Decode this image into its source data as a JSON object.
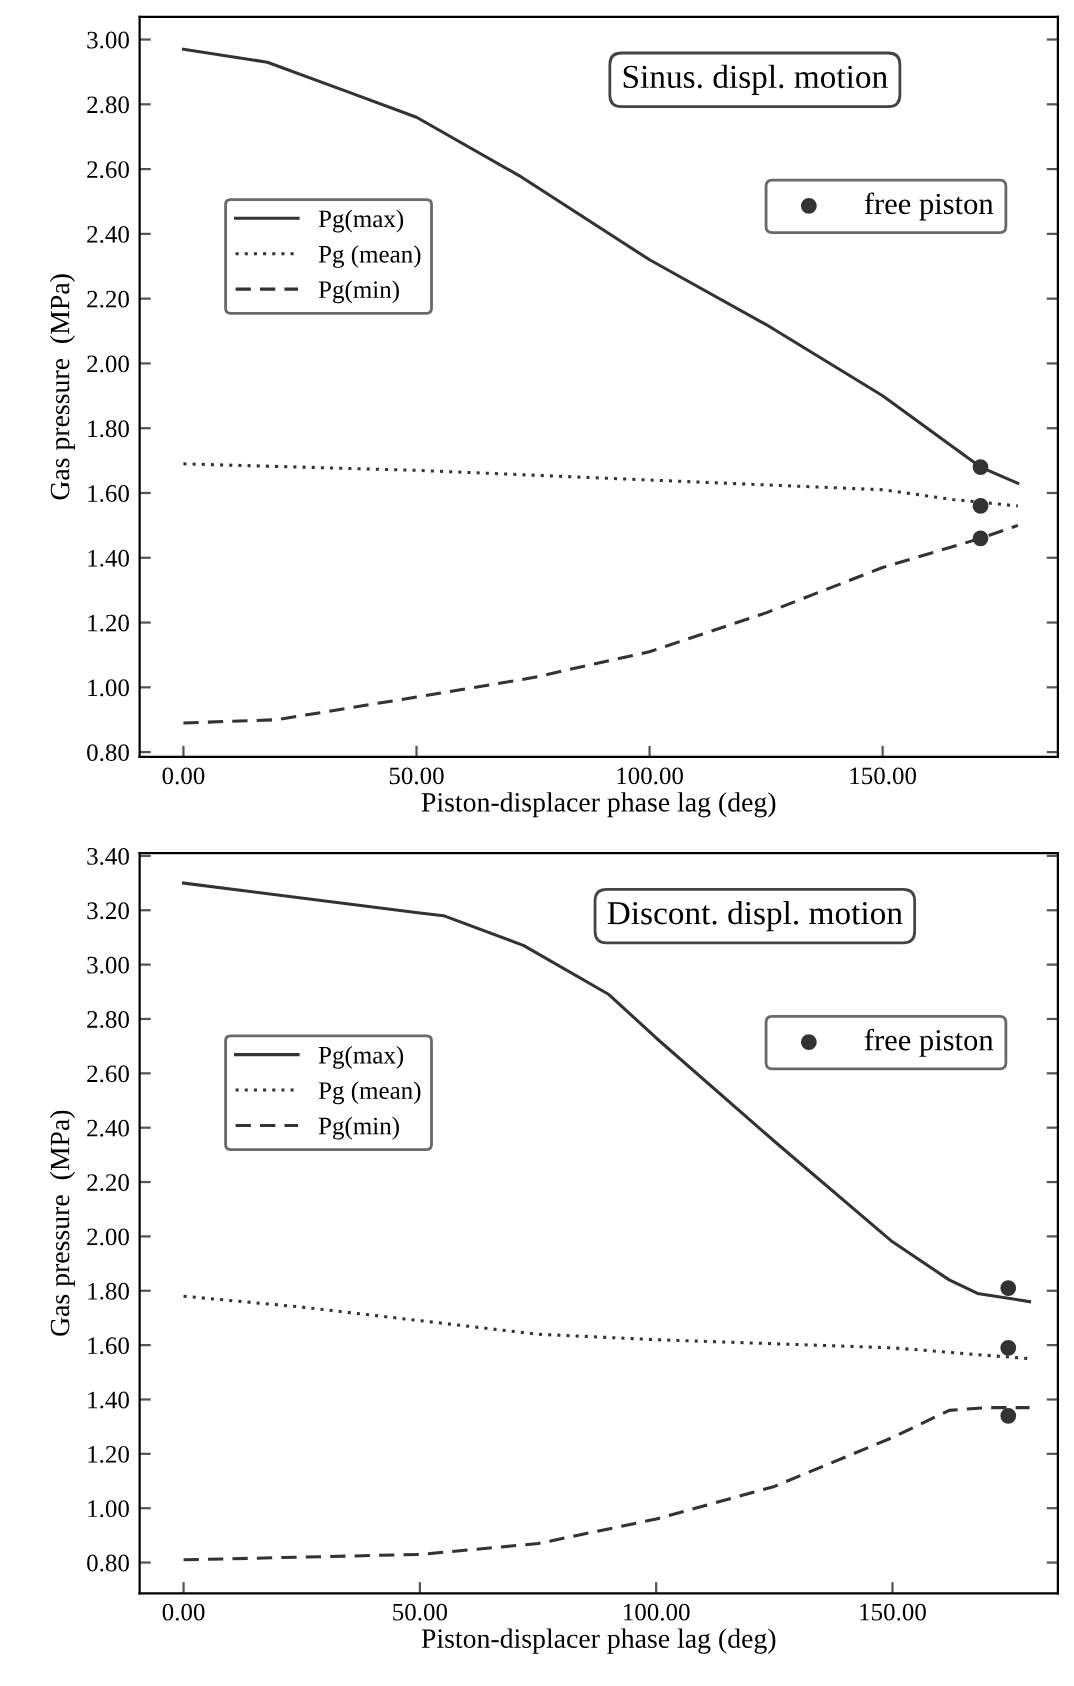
{
  "chart_data": [
    {
      "type": "line",
      "xlabel": "Piston-displacer phase lag (deg)",
      "ylabel": "Gas pressure  (MPa)",
      "annotations": [
        "Sinus. displ. motion"
      ],
      "xlim": [
        -9.4,
        187.6
      ],
      "ylim": [
        0.785,
        3.07
      ],
      "xticks": [
        {
          "value": 0,
          "label": "0.00"
        },
        {
          "value": 50,
          "label": "50.00"
        },
        {
          "value": 100,
          "label": "100.00"
        },
        {
          "value": 150,
          "label": "150.00"
        }
      ],
      "yticks": [
        {
          "value": 0.8,
          "label": "0.80"
        },
        {
          "value": 1.0,
          "label": "1.00"
        },
        {
          "value": 1.2,
          "label": "1.20"
        },
        {
          "value": 1.4,
          "label": "1.40"
        },
        {
          "value": 1.6,
          "label": "1.60"
        },
        {
          "value": 1.8,
          "label": "1.80"
        },
        {
          "value": 2.0,
          "label": "2.00"
        },
        {
          "value": 2.2,
          "label": "2.20"
        },
        {
          "value": 2.4,
          "label": "2.40"
        },
        {
          "value": 2.6,
          "label": "2.60"
        },
        {
          "value": 2.8,
          "label": "2.80"
        },
        {
          "value": 3.0,
          "label": "3.00"
        }
      ],
      "legend": "top left",
      "grid": false,
      "series": [
        {
          "name": "Pg(max)",
          "color": "#333333",
          "line_style": "solid",
          "x": [
            0,
            18,
            35,
            50,
            72,
            100,
            125,
            150,
            171,
            179
          ],
          "values": [
            2.97,
            2.93,
            2.84,
            2.76,
            2.58,
            2.32,
            2.12,
            1.9,
            1.68,
            1.63
          ]
        },
        {
          "name": "Pg (mean)",
          "color": "#333333",
          "line_style": "dotted",
          "x": [
            0,
            50,
            100,
            150,
            165,
            179
          ],
          "values": [
            1.69,
            1.67,
            1.64,
            1.61,
            1.58,
            1.56
          ]
        },
        {
          "name": "Pg(min)",
          "color": "#333333",
          "line_style": "dashed",
          "x": [
            0,
            20,
            50,
            75,
            100,
            125,
            150,
            171,
            179
          ],
          "values": [
            0.89,
            0.9,
            0.97,
            1.03,
            1.11,
            1.23,
            1.37,
            1.46,
            1.5
          ]
        },
        {
          "name": "free piston",
          "type": "scatter",
          "marker": "circle",
          "color": "#333333",
          "x": [
            171,
            171,
            171
          ],
          "values": [
            1.68,
            1.56,
            1.46
          ]
        }
      ]
    },
    {
      "type": "line",
      "xlabel": "Piston-displacer phase lag (deg)",
      "ylabel": "Gas pressure  (MPa)",
      "annotations": [
        "Discont. displ. motion"
      ],
      "xlim": [
        -9.3,
        185
      ],
      "ylim": [
        0.687,
        3.41
      ],
      "xticks": [
        {
          "value": 0,
          "label": "0.00"
        },
        {
          "value": 50,
          "label": "50.00"
        },
        {
          "value": 100,
          "label": "100.00"
        },
        {
          "value": 150,
          "label": "150.00"
        }
      ],
      "yticks": [
        {
          "value": 0.8,
          "label": "0.80"
        },
        {
          "value": 1.0,
          "label": "1.00"
        },
        {
          "value": 1.2,
          "label": "1.20"
        },
        {
          "value": 1.4,
          "label": "1.40"
        },
        {
          "value": 1.6,
          "label": "1.60"
        },
        {
          "value": 1.8,
          "label": "1.80"
        },
        {
          "value": 2.0,
          "label": "2.00"
        },
        {
          "value": 2.2,
          "label": "2.20"
        },
        {
          "value": 2.4,
          "label": "2.40"
        },
        {
          "value": 2.6,
          "label": "2.60"
        },
        {
          "value": 2.8,
          "label": "2.80"
        },
        {
          "value": 3.0,
          "label": "3.00"
        },
        {
          "value": 3.2,
          "label": "3.20"
        },
        {
          "value": 3.4,
          "label": "3.40"
        }
      ],
      "legend": "top left",
      "grid": false,
      "series": [
        {
          "name": "Pg(max)",
          "color": "#333333",
          "line_style": "solid",
          "x": [
            0,
            50,
            55,
            72,
            90,
            100,
            125,
            150,
            162,
            168,
            179
          ],
          "values": [
            3.3,
            3.19,
            3.18,
            3.07,
            2.89,
            2.73,
            2.35,
            1.98,
            1.84,
            1.79,
            1.76
          ]
        },
        {
          "name": "Pg (mean)",
          "color": "#333333",
          "line_style": "dotted",
          "x": [
            0,
            25,
            50,
            75,
            100,
            150,
            179
          ],
          "values": [
            1.78,
            1.74,
            1.69,
            1.64,
            1.62,
            1.59,
            1.55
          ]
        },
        {
          "name": "Pg(min)",
          "color": "#333333",
          "line_style": "dashed",
          "x": [
            0,
            50,
            75,
            100,
            125,
            150,
            162,
            170,
            179
          ],
          "values": [
            0.81,
            0.83,
            0.87,
            0.96,
            1.08,
            1.26,
            1.36,
            1.37,
            1.37
          ]
        },
        {
          "name": "free piston",
          "type": "scatter",
          "marker": "circle",
          "color": "#333333",
          "x": [
            174.5,
            174.5,
            174.5
          ],
          "values": [
            1.81,
            1.59,
            1.34
          ]
        }
      ]
    }
  ]
}
